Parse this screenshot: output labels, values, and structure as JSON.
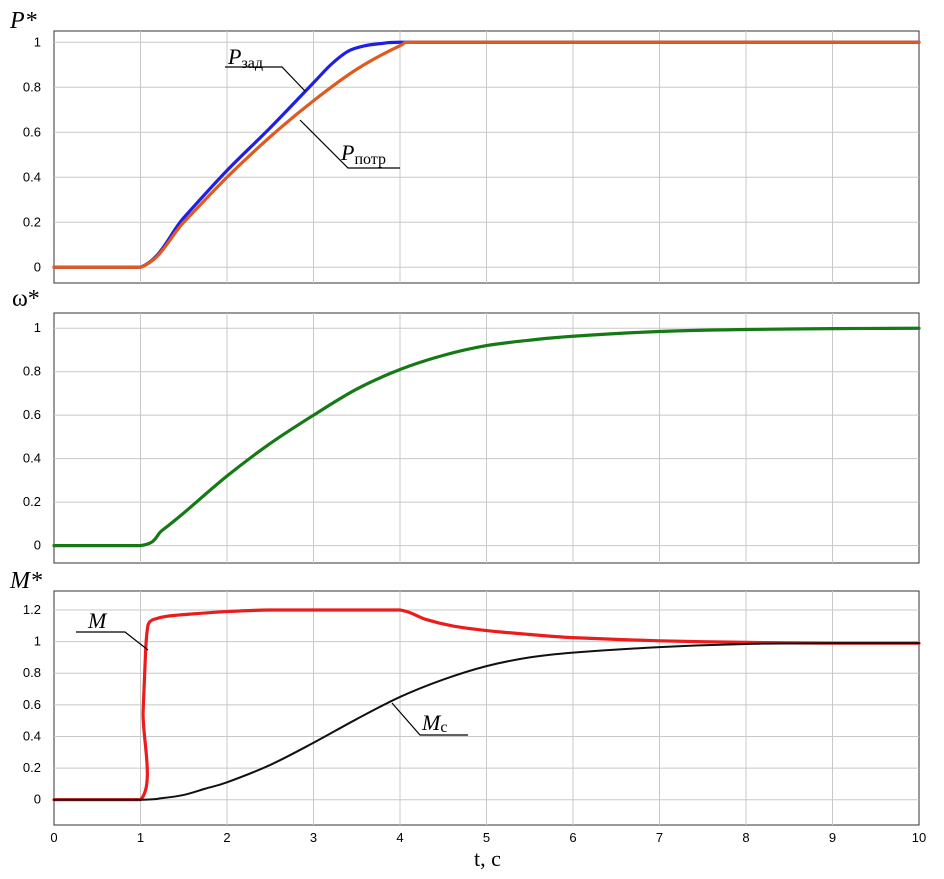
{
  "chart_data": [
    {
      "type": "line",
      "ylabel": "P*",
      "xlim": [
        0,
        10
      ],
      "ylim": [
        -0.07,
        1.05
      ],
      "yticks": [
        0,
        0.2,
        0.4,
        0.6,
        0.8,
        1
      ],
      "yticklabels": [
        "0",
        "0.2",
        "0.4",
        "0.6",
        "0.8",
        "1"
      ],
      "grid": true,
      "series": [
        {
          "name": "Pзад",
          "color": "#1f1fe6",
          "x": [
            0,
            1,
            1.5,
            2,
            2.5,
            3,
            3.2,
            3.4,
            3.6,
            3.8,
            4,
            5,
            10
          ],
          "y": [
            0,
            0,
            0.22,
            0.43,
            0.62,
            0.82,
            0.9,
            0.96,
            0.985,
            0.995,
            1,
            1,
            1
          ]
        },
        {
          "name": "Pпотр",
          "color": "#dd5a20",
          "x": [
            0,
            1,
            1.5,
            2,
            2.5,
            3,
            3.5,
            4,
            4.15,
            5,
            10
          ],
          "y": [
            0,
            0,
            0.2,
            0.4,
            0.58,
            0.74,
            0.88,
            0.985,
            1,
            1,
            1
          ]
        }
      ],
      "annotations": [
        {
          "base": "P",
          "sub": "зад",
          "at": [
            3.15,
            0.83
          ]
        },
        {
          "base": "P",
          "sub": "потр",
          "at": [
            2.85,
            0.66
          ]
        }
      ]
    },
    {
      "type": "line",
      "ylabel": "ω*",
      "xlim": [
        0,
        10
      ],
      "ylim": [
        -0.08,
        1.07
      ],
      "yticks": [
        0,
        0.2,
        0.4,
        0.6,
        0.8,
        1
      ],
      "yticklabels": [
        "0",
        "0.2",
        "0.4",
        "0.6",
        "0.8",
        "1"
      ],
      "grid": true,
      "series": [
        {
          "color": "#157a15",
          "x": [
            0,
            1,
            1.25,
            1.5,
            2,
            2.5,
            3,
            3.5,
            4,
            4.5,
            5,
            5.5,
            6,
            7,
            8,
            9,
            10
          ],
          "y": [
            0,
            0,
            0.07,
            0.15,
            0.32,
            0.47,
            0.6,
            0.72,
            0.81,
            0.875,
            0.92,
            0.945,
            0.963,
            0.985,
            0.994,
            0.998,
            1
          ]
        }
      ]
    },
    {
      "type": "line",
      "ylabel": "M*",
      "xlabel": "t, c",
      "xlim": [
        0,
        10
      ],
      "ylim": [
        -0.16,
        1.32
      ],
      "xticks": [
        0,
        1,
        2,
        3,
        4,
        5,
        6,
        7,
        8,
        9,
        10
      ],
      "xticklabels": [
        "0",
        "1",
        "2",
        "3",
        "4",
        "5",
        "6",
        "7",
        "8",
        "9",
        "10"
      ],
      "yticks": [
        0,
        0.2,
        0.4,
        0.6,
        0.8,
        1,
        1.2
      ],
      "yticklabels": [
        "0",
        "0.2",
        "0.4",
        "0.6",
        "0.8",
        "1",
        "1.2"
      ],
      "grid": true,
      "series": [
        {
          "name": "M",
          "color": "#ec1c1c",
          "x": [
            0,
            1,
            1.03,
            1.06,
            1.08,
            1.1,
            1.15,
            1.3,
            1.6,
            2,
            2.5,
            3,
            3.5,
            4,
            4.3,
            4.6,
            5,
            5.5,
            6,
            7,
            8,
            9,
            10
          ],
          "y": [
            0,
            0,
            0.55,
            0.95,
            1.08,
            1.12,
            1.14,
            1.16,
            1.175,
            1.19,
            1.2,
            1.2,
            1.2,
            1.2,
            1.14,
            1.1,
            1.07,
            1.045,
            1.025,
            1.005,
            0.995,
            0.99,
            0.99
          ]
        },
        {
          "name": "Mc",
          "color": "#111111",
          "x": [
            0,
            1,
            1.25,
            1.5,
            1.75,
            2,
            2.5,
            3,
            3.5,
            4,
            4.5,
            5,
            5.5,
            6,
            7,
            8,
            9,
            10
          ],
          "y": [
            0,
            0,
            0.01,
            0.03,
            0.07,
            0.11,
            0.22,
            0.36,
            0.51,
            0.65,
            0.76,
            0.845,
            0.9,
            0.93,
            0.965,
            0.985,
            0.99,
            0.99
          ]
        }
      ],
      "annotations": [
        {
          "base": "M",
          "sub": "",
          "at": [
            1.07,
            1.05
          ]
        },
        {
          "base": "M",
          "sub": "c",
          "at": [
            3.9,
            0.63
          ]
        }
      ]
    }
  ]
}
